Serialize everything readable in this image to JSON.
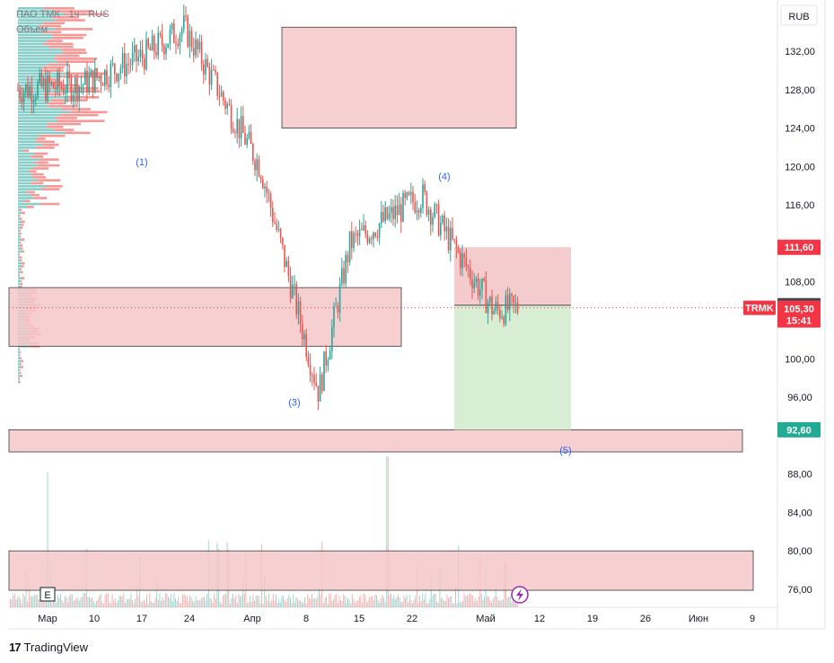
{
  "legend": {
    "symbol": "ПАО ТМК · 1ч · RUS",
    "volume_label": "Объем"
  },
  "currency": "RUB",
  "footer": {
    "logo_glyph": "17",
    "brand": "TradingView"
  },
  "chart_data": {
    "type": "candlestick",
    "title": "ПАО ТМК · 1ч · RUS",
    "ylabel": "RUB",
    "ylim": [
      74.0,
      140.0
    ],
    "y_ticks": [
      "132,00",
      "128,00",
      "124,00",
      "120,00",
      "116,00",
      "108,00",
      "100,00",
      "96,00",
      "88,00",
      "84,00",
      "80,00",
      "76,00"
    ],
    "x_ticks": [
      "Мар",
      "10",
      "17",
      "24",
      "Апр",
      "8",
      "15",
      "22",
      "Май",
      "12",
      "19",
      "26",
      "Июн",
      "9"
    ],
    "price_path": [
      {
        "x": "Мар",
        "price": 128.0
      },
      {
        "x": "10",
        "price": 128.5
      },
      {
        "x": "17",
        "price": 131.5
      },
      {
        "x": "24",
        "price": 134.5
      },
      {
        "x": "Апр",
        "price": 120.0
      },
      {
        "x": "8",
        "price": 96.5
      },
      {
        "x": "15",
        "price": 112.0
      },
      {
        "x": "22",
        "price": 117.0
      },
      {
        "x": "Май",
        "price": 105.0
      },
      {
        "x": "Май",
        "price": 105.3
      }
    ],
    "volume_profile": true,
    "wave_labels": [
      {
        "text": "(1)",
        "price": 120.5
      },
      {
        "text": "(3)",
        "price": 95.5
      },
      {
        "text": "(4)",
        "price": 119.0
      },
      {
        "text": "(5)",
        "price": 90.5
      }
    ],
    "zones": [
      {
        "kind": "resistance",
        "from": 124.0,
        "to": 134.5,
        "color": "#f4c7c9"
      },
      {
        "kind": "support",
        "from": 101.3,
        "to": 107.4,
        "color": "#f4c7c9"
      },
      {
        "kind": "support",
        "from": 90.3,
        "to": 92.6,
        "color": "#f4c7c9"
      },
      {
        "kind": "volume-zone",
        "from": 75.9,
        "to": 80.0,
        "color": "#f4c7c9"
      }
    ],
    "position": {
      "entry": 105.56,
      "stop": 111.6,
      "target": 92.6,
      "stop_color": "#f4c7c9",
      "target_color": "#d3ecd0"
    },
    "price_labels": [
      {
        "text": "111,60",
        "color": "#f23645"
      },
      {
        "text": "105,56",
        "color": "#434651"
      },
      {
        "text": "105,30",
        "color": "#f23645"
      },
      {
        "text": "15:41",
        "color": "#f23645"
      },
      {
        "text": "92,60",
        "color": "#22ab94"
      }
    ],
    "symbol_tag": "TRMK",
    "last_price": 105.3,
    "countdown": "15:41",
    "bottom_markers": [
      "E"
    ]
  }
}
